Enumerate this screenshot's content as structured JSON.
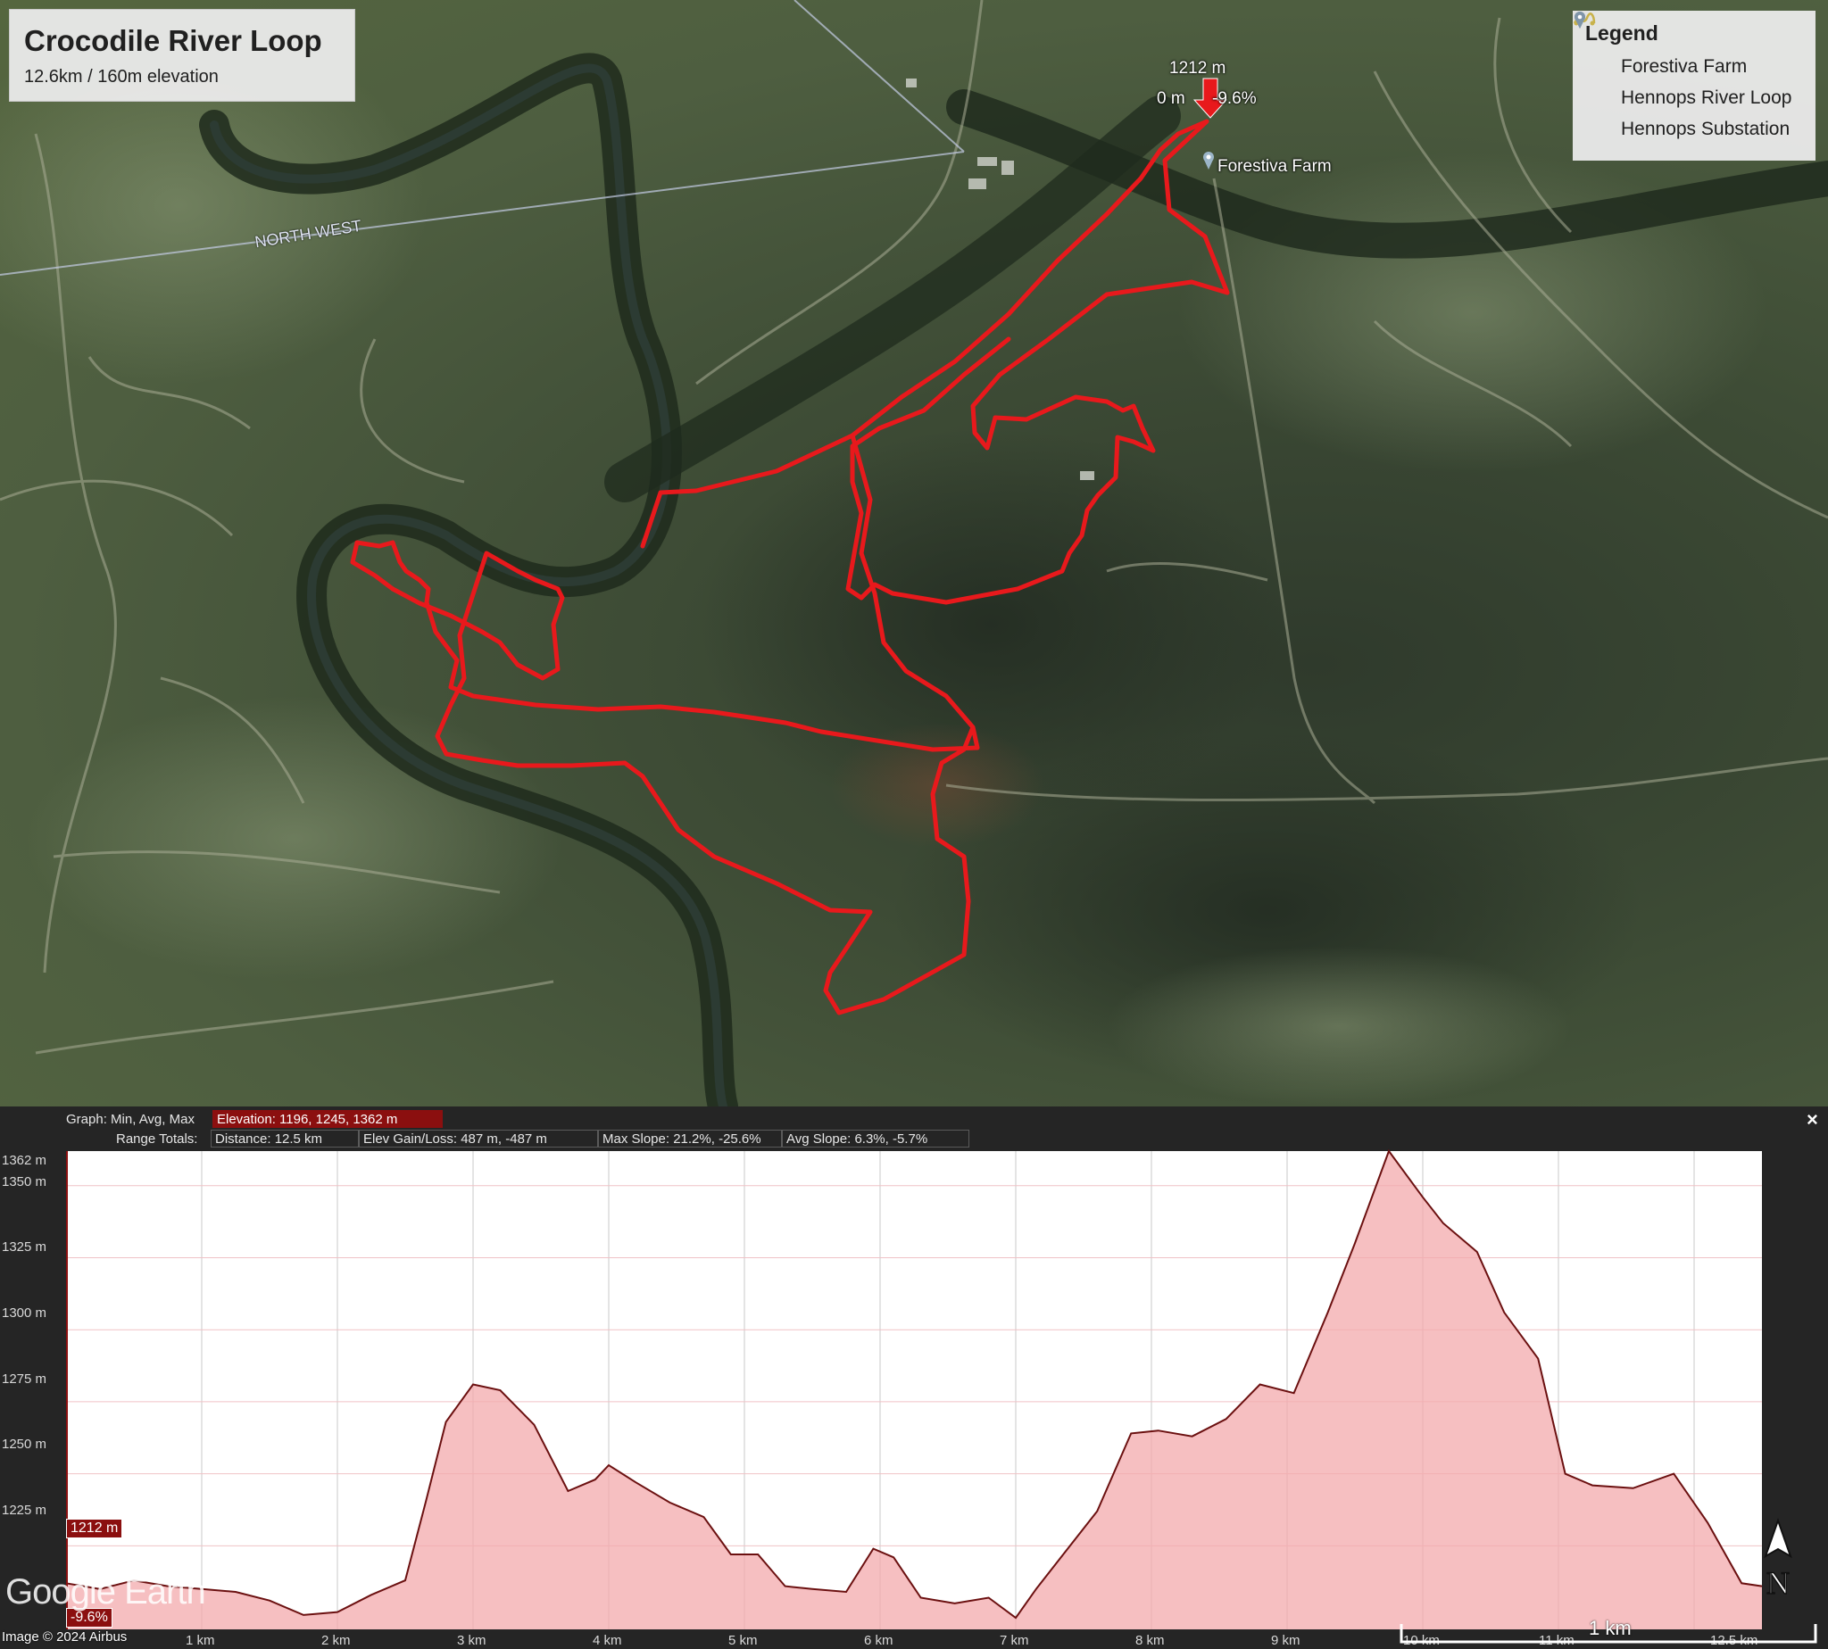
{
  "map": {
    "title": "Crocodile River Loop",
    "subtitle": "12.6km / 160m elevation",
    "region_label": "NORTH WEST",
    "place_label": "Forestiva Farm",
    "cursor": {
      "elevation": "1212 m",
      "distance": "0 m",
      "slope": "-9.6%"
    },
    "track_color": "#e8191c"
  },
  "legend": {
    "title": "Legend",
    "items": [
      {
        "label": "Forestiva Farm",
        "icon": "placemark-icon"
      },
      {
        "label": "Hennops River Loop",
        "icon": "path-icon"
      },
      {
        "label": "Hennops Substation",
        "icon": "placemark-icon"
      }
    ]
  },
  "profile": {
    "graph_label": "Graph: Min, Avg, Max",
    "elevation_stat": "Elevation: 1196, 1245, 1362 m",
    "range_label": "Range Totals:",
    "distance_stat": "Distance: 12.5 km",
    "gain_stat": "Elev Gain/Loss: 487 m, -487 m",
    "slope_stat": "Max Slope: 21.2%, -25.6%",
    "avg_slope_stat": "Avg Slope: 6.3%, -5.7%",
    "close_label": "×",
    "current_elev": "1212 m",
    "current_slope": "-9.6%",
    "y_ticks": [
      "1362 m",
      "1350 m",
      "1325 m",
      "1300 m",
      "1275 m",
      "1250 m",
      "1225 m"
    ],
    "x_ticks": [
      "1 km",
      "2 km",
      "3 km",
      "4 km",
      "5 km",
      "6 km",
      "7 km",
      "8 km",
      "9 km",
      "10 km",
      "11 km",
      "12.5 km"
    ]
  },
  "chart_data": {
    "type": "area",
    "xlabel": "",
    "ylabel": "",
    "xlim": [
      0,
      12.5
    ],
    "ylim": [
      1196,
      1362
    ],
    "x": [
      0,
      0.25,
      0.5,
      0.75,
      1.0,
      1.25,
      1.5,
      1.75,
      2.0,
      2.25,
      2.5,
      2.65,
      2.8,
      3.0,
      3.2,
      3.45,
      3.7,
      3.9,
      4.0,
      4.2,
      4.45,
      4.7,
      4.9,
      5.1,
      5.3,
      5.5,
      5.75,
      5.95,
      6.1,
      6.3,
      6.55,
      6.8,
      7.0,
      7.15,
      7.35,
      7.6,
      7.85,
      8.05,
      8.3,
      8.55,
      8.8,
      9.05,
      9.3,
      9.5,
      9.75,
      10.0,
      10.15,
      10.4,
      10.6,
      10.85,
      11.05,
      11.25,
      11.55,
      11.85,
      12.1,
      12.35,
      12.5
    ],
    "y": [
      1212,
      1210,
      1213,
      1211,
      1210,
      1209,
      1206,
      1201,
      1202,
      1208,
      1213,
      1240,
      1268,
      1281,
      1279,
      1267,
      1244,
      1248,
      1253,
      1247,
      1240,
      1235,
      1222,
      1222,
      1211,
      1210,
      1209,
      1224,
      1221,
      1207,
      1205,
      1207,
      1200,
      1210,
      1222,
      1237,
      1264,
      1265,
      1263,
      1269,
      1281,
      1278,
      1306,
      1330,
      1362,
      1346,
      1337,
      1327,
      1306,
      1290,
      1250,
      1246,
      1245,
      1250,
      1233,
      1212,
      1211
    ]
  }
}
